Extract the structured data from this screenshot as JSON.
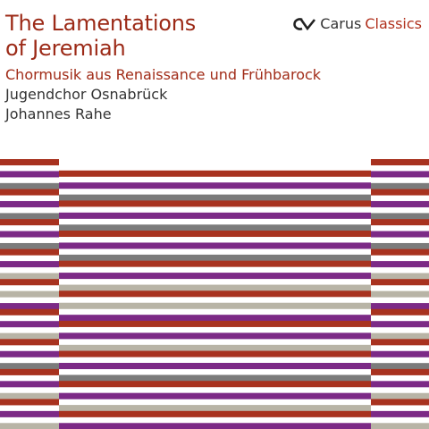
{
  "title": {
    "line1": "The Lamentations",
    "line2": "of Jeremiah"
  },
  "subtitle": "Chormusik aus Renaissance und Frühbarock",
  "performer": "Jugendchor Osnabrück",
  "conductor": "Johannes Rahe",
  "label": {
    "name": "Carus",
    "series": "Classics",
    "logo_icon": "cv-monogram-icon"
  },
  "colors": {
    "red": "#a8321f",
    "purple": "#7c2a86",
    "gray": "#7b7b7b",
    "sand": "#b8b4a6",
    "white": "#ffffff",
    "title_red": "#9c2a17",
    "text_dark": "#333333"
  },
  "stripe_pattern": {
    "outer": [
      "red",
      "white",
      "purple",
      "white",
      "gray",
      "red",
      "white",
      "purple",
      "white",
      "gray",
      "red",
      "white",
      "purple",
      "white",
      "gray",
      "red",
      "white",
      "purple",
      "white",
      "sand",
      "red",
      "white",
      "sand",
      "white",
      "purple",
      "red",
      "white",
      "purple",
      "white",
      "sand",
      "red",
      "white",
      "purple",
      "white",
      "gray",
      "red",
      "white",
      "purple",
      "white",
      "sand",
      "red",
      "white",
      "purple",
      "white",
      "sand"
    ],
    "inner": [
      "white",
      "red",
      "white",
      "purple",
      "white",
      "gray",
      "red",
      "white",
      "purple",
      "white",
      "gray",
      "red",
      "white",
      "purple",
      "white",
      "gray",
      "red",
      "white",
      "purple",
      "white",
      "sand",
      "red",
      "white",
      "sand",
      "white",
      "purple",
      "red",
      "white",
      "purple",
      "white",
      "sand",
      "red",
      "white",
      "purple",
      "white",
      "gray",
      "red",
      "white",
      "purple",
      "white",
      "sand",
      "red",
      "white",
      "purple"
    ]
  }
}
